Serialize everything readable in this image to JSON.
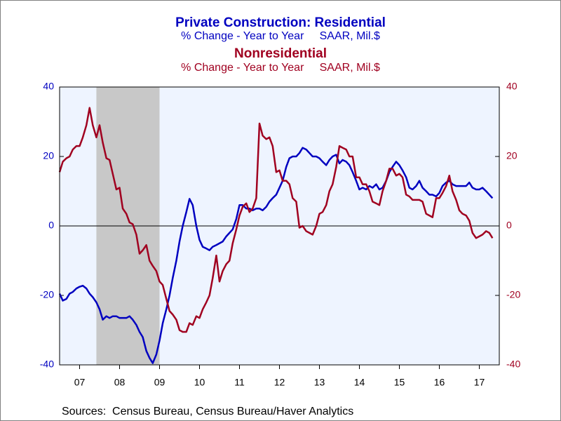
{
  "chart_data": {
    "type": "line",
    "title": "Private Construction: Residential",
    "subtitle": "% Change - Year to Year     SAAR, Mil.$",
    "title2": "Nonresidential",
    "subtitle2": "% Change - Year to Year     SAAR, Mil.$",
    "source": "Sources:  Census Bureau, Census Bureau/Haver Analytics",
    "recession": [
      2007.92,
      2009.5
    ],
    "xlim": [
      2007,
      2018
    ],
    "xticks": [
      {
        "value": 2007.5,
        "label": "07"
      },
      {
        "value": 2008.5,
        "label": "08"
      },
      {
        "value": 2009.5,
        "label": "09"
      },
      {
        "value": 2010.5,
        "label": "10"
      },
      {
        "value": 2011.5,
        "label": "11"
      },
      {
        "value": 2012.5,
        "label": "12"
      },
      {
        "value": 2013.5,
        "label": "13"
      },
      {
        "value": 2014.5,
        "label": "14"
      },
      {
        "value": 2015.5,
        "label": "15"
      },
      {
        "value": 2016.5,
        "label": "16"
      },
      {
        "value": 2017.5,
        "label": "17"
      }
    ],
    "ylim": [
      -40,
      40
    ],
    "yticks": [
      -40,
      -20,
      0,
      20,
      40
    ],
    "y2lim": [
      -40,
      40
    ],
    "y2ticks": [
      -40,
      -20,
      0,
      20,
      40
    ],
    "x": [
      2007.0,
      2007.08,
      2007.17,
      2007.25,
      2007.33,
      2007.42,
      2007.5,
      2007.58,
      2007.67,
      2007.75,
      2007.83,
      2007.92,
      2008.0,
      2008.08,
      2008.17,
      2008.25,
      2008.33,
      2008.42,
      2008.5,
      2008.58,
      2008.67,
      2008.75,
      2008.83,
      2008.92,
      2009.0,
      2009.08,
      2009.17,
      2009.25,
      2009.33,
      2009.42,
      2009.5,
      2009.58,
      2009.67,
      2009.75,
      2009.83,
      2009.92,
      2010.0,
      2010.08,
      2010.17,
      2010.25,
      2010.33,
      2010.42,
      2010.5,
      2010.58,
      2010.67,
      2010.75,
      2010.83,
      2010.92,
      2011.0,
      2011.08,
      2011.17,
      2011.25,
      2011.33,
      2011.42,
      2011.5,
      2011.58,
      2011.67,
      2011.75,
      2011.83,
      2011.92,
      2012.0,
      2012.08,
      2012.17,
      2012.25,
      2012.33,
      2012.42,
      2012.5,
      2012.58,
      2012.67,
      2012.75,
      2012.83,
      2012.92,
      2013.0,
      2013.08,
      2013.17,
      2013.25,
      2013.33,
      2013.42,
      2013.5,
      2013.58,
      2013.67,
      2013.75,
      2013.83,
      2013.92,
      2014.0,
      2014.08,
      2014.17,
      2014.25,
      2014.33,
      2014.42,
      2014.5,
      2014.58,
      2014.67,
      2014.75,
      2014.83,
      2014.92,
      2015.0,
      2015.08,
      2015.17,
      2015.25,
      2015.33,
      2015.42,
      2015.5,
      2015.58,
      2015.67,
      2015.75,
      2015.83,
      2015.92,
      2016.0,
      2016.08,
      2016.17,
      2016.25,
      2016.33,
      2016.42,
      2016.5,
      2016.58,
      2016.67,
      2016.75,
      2016.83,
      2016.92,
      2017.0,
      2017.08,
      2017.17,
      2017.25,
      2017.33,
      2017.42,
      2017.5,
      2017.58,
      2017.67,
      2017.75,
      2017.83
    ],
    "series": [
      {
        "name": "Private Construction: Residential",
        "color": "#0000c0",
        "axis": "y",
        "values": [
          -19.5,
          -21.5,
          -21,
          -19.5,
          -19,
          -18,
          -17.5,
          -17.2,
          -18,
          -19.5,
          -20.5,
          -22,
          -24,
          -27,
          -26,
          -26.5,
          -26,
          -26,
          -26.5,
          -26.5,
          -26.5,
          -26,
          -27,
          -28.5,
          -30.5,
          -32,
          -36,
          -38,
          -39.5,
          -37,
          -33,
          -28,
          -24,
          -20,
          -15,
          -10,
          -4.5,
          0,
          4,
          7.8,
          6,
          0,
          -4,
          -6,
          -6.5,
          -7,
          -6,
          -5.5,
          -5,
          -4.5,
          -3,
          -2,
          -1,
          2,
          6,
          6,
          5,
          5,
          4.5,
          5,
          5,
          4.5,
          5.5,
          7,
          8,
          9,
          11,
          13,
          17,
          19.5,
          20,
          20,
          21,
          22.5,
          22,
          21,
          20,
          20,
          19.5,
          18.5,
          17.5,
          19,
          20,
          20.5,
          18,
          19,
          18.5,
          17.5,
          15.5,
          13,
          10.5,
          11,
          10.5,
          11.5,
          11,
          12,
          10.5,
          11,
          13,
          15.5,
          17,
          18.5,
          17.5,
          16,
          14,
          11,
          10.5,
          11.5,
          13,
          11,
          10,
          9,
          9,
          8.5,
          9.5,
          11.5,
          12.5,
          13,
          12,
          11.5,
          11.5,
          11.5,
          11.5,
          12.5,
          11,
          10.5,
          10.5,
          11,
          10,
          9,
          8
        ]
      },
      {
        "name": "Nonresidential",
        "color": "#a00020",
        "axis": "y2",
        "values": [
          15.5,
          18.5,
          19.5,
          20,
          22,
          23,
          23,
          25.5,
          29,
          34,
          29,
          25.5,
          29,
          24,
          19.5,
          19,
          15,
          10.5,
          11,
          5,
          3.5,
          1,
          0.5,
          -2.5,
          -8,
          -7,
          -5.5,
          -10,
          -11.5,
          -13,
          -16,
          -17,
          -21,
          -24.5,
          -25.5,
          -27,
          -30,
          -30.5,
          -30.5,
          -28,
          -28.5,
          -26,
          -26.5,
          -24,
          -22,
          -20,
          -15,
          -8.5,
          -16,
          -13,
          -11,
          -10,
          -5,
          -1,
          3,
          5.5,
          6.5,
          4,
          5,
          8,
          29.5,
          26,
          25,
          25.5,
          23,
          15.5,
          16,
          13,
          13,
          12,
          8,
          7,
          -0.5,
          0,
          -1.5,
          -2,
          -2.5,
          0,
          3.5,
          4,
          6,
          10,
          12,
          17,
          23,
          22.5,
          22,
          20,
          20,
          14,
          14,
          12,
          12,
          10,
          7,
          6.5,
          6,
          10,
          13,
          16.5,
          16.5,
          14.5,
          15,
          14,
          9,
          8.5,
          7.5,
          7.5,
          7.5,
          7,
          3.5,
          3,
          2.5,
          8,
          8,
          9.5,
          11.5,
          14.5,
          10,
          7.5,
          4.5,
          3.5,
          3,
          1.5,
          -2,
          -3.5,
          -3,
          -2.5,
          -1.5,
          -2,
          -3.5
        ]
      }
    ]
  }
}
